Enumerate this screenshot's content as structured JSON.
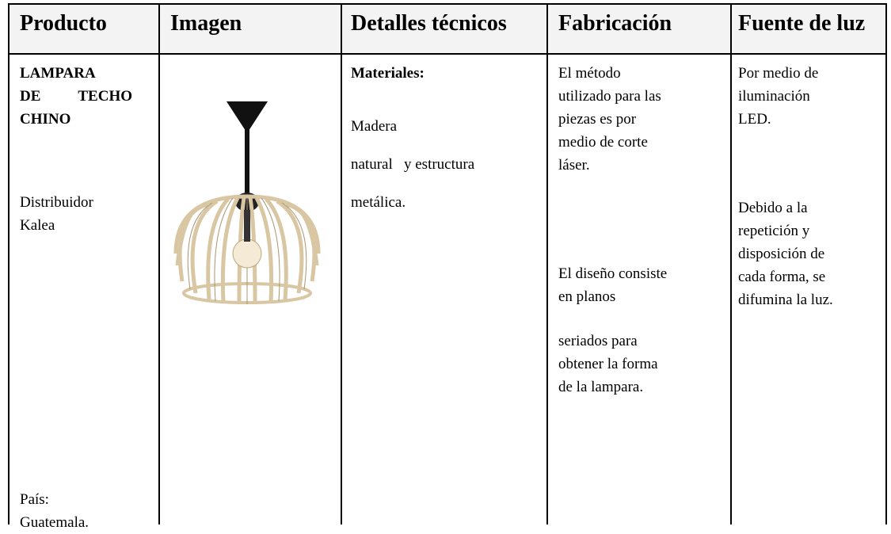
{
  "table": {
    "header": [
      "Producto",
      "Imagen",
      "Detalles técnicos",
      "Fabricación",
      "Fuente de luz"
    ],
    "product": {
      "name": [
        "LAMPARA",
        "DE TECHO",
        "CHINO"
      ],
      "distributor": [
        "Distribuidor",
        "Kalea"
      ],
      "country": [
        "País:",
        "Guatemala."
      ]
    },
    "technical": {
      "heading": "Materiales:",
      "lines": [
        "Madera",
        "natural   y estructura",
        "metálica."
      ]
    },
    "manufacturing": [
      [
        "El método",
        "utilizado para las",
        "piezas es por",
        "medio de corte",
        "láser."
      ],
      [
        "El diseño consiste",
        "en planos"
      ],
      [
        "seriados para",
        "obtener la forma",
        "de la lampara."
      ]
    ],
    "light_source": [
      [
        "Por medio de",
        "iluminación",
        "LED."
      ],
      [
        "Debido a la",
        "repetición y",
        "disposición de",
        "cada forma, se",
        "difumina la luz."
      ]
    ]
  }
}
